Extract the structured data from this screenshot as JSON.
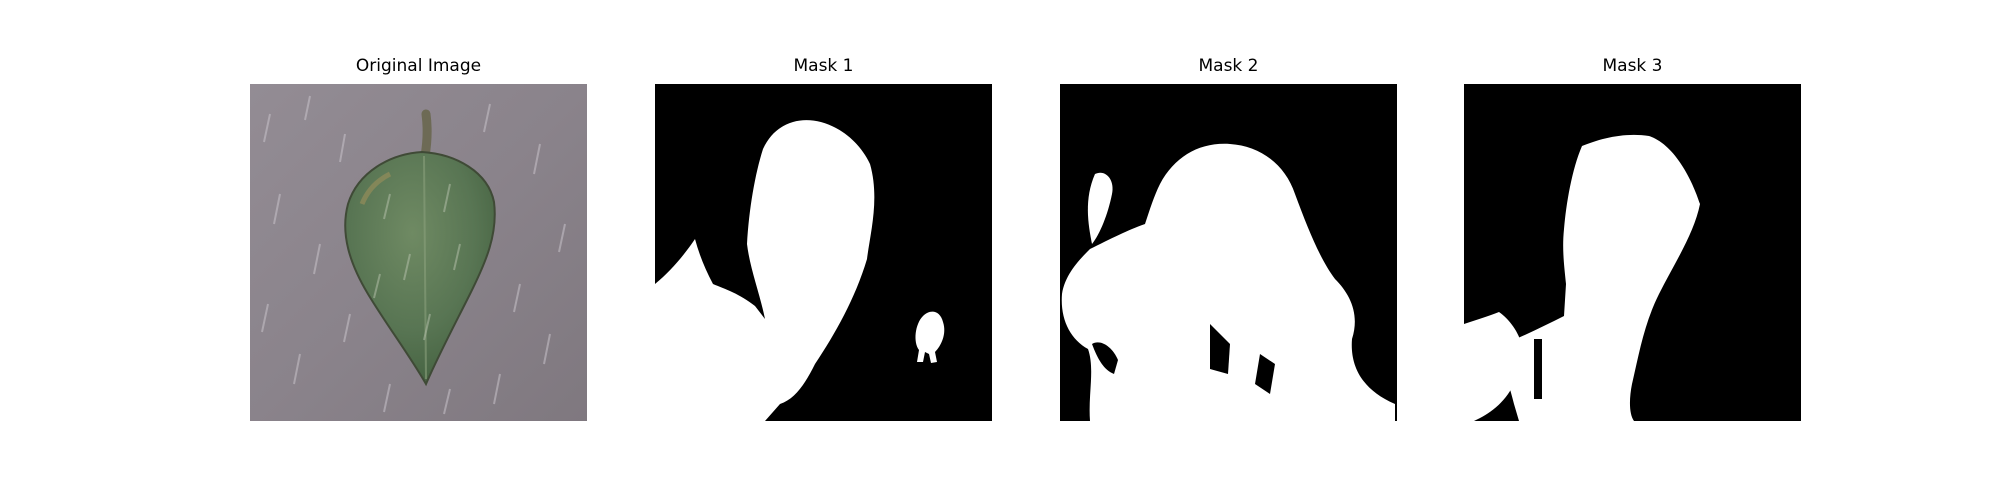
{
  "figure": {
    "panels": [
      {
        "title": "Original Image",
        "kind": "photo",
        "subject": "leaf-on-gray-background"
      },
      {
        "title": "Mask 1",
        "kind": "mask"
      },
      {
        "title": "Mask 2",
        "kind": "mask"
      },
      {
        "title": "Mask 3",
        "kind": "mask"
      }
    ]
  },
  "colors": {
    "background": "#ffffff",
    "mask_fg": "#ffffff",
    "mask_bg": "#000000",
    "photo_bg": "#8f8890",
    "leaf": "#5c7a52"
  }
}
